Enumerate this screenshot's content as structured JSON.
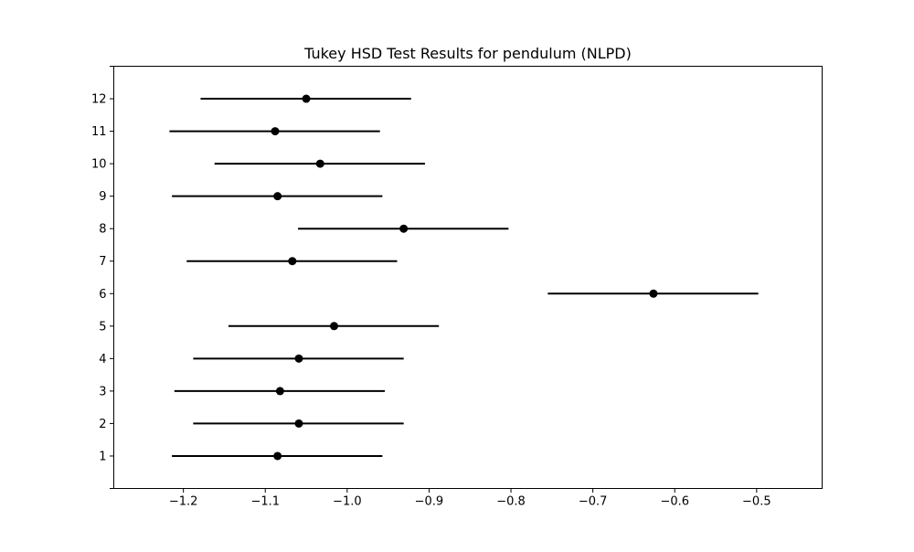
{
  "chart_data": {
    "type": "scatter",
    "subtype": "interval-plot",
    "title": "Tukey HSD Test Results for pendulum (NLPD)",
    "xlabel": "",
    "ylabel": "",
    "xlim": [
      -1.285,
      -0.42
    ],
    "ylim": [
      0,
      13
    ],
    "x_ticks": [
      -1.2,
      -1.1,
      -1.0,
      -0.9,
      -0.8,
      -0.7,
      -0.6,
      -0.5
    ],
    "x_tick_labels": [
      "−1.2",
      "−1.1",
      "−1.0",
      "−0.9",
      "−0.8",
      "−0.7",
      "−0.6",
      "−0.5"
    ],
    "categories": [
      "1",
      "2",
      "3",
      "4",
      "5",
      "6",
      "7",
      "8",
      "9",
      "10",
      "11",
      "12"
    ],
    "points": [
      {
        "group": "1",
        "mean": -1.085,
        "lower": -1.214,
        "upper": -0.957
      },
      {
        "group": "2",
        "mean": -1.059,
        "lower": -1.188,
        "upper": -0.931
      },
      {
        "group": "3",
        "mean": -1.082,
        "lower": -1.211,
        "upper": -0.954
      },
      {
        "group": "4",
        "mean": -1.059,
        "lower": -1.188,
        "upper": -0.931
      },
      {
        "group": "5",
        "mean": -1.016,
        "lower": -1.145,
        "upper": -0.888
      },
      {
        "group": "6",
        "mean": -0.626,
        "lower": -0.755,
        "upper": -0.498
      },
      {
        "group": "7",
        "mean": -1.067,
        "lower": -1.196,
        "upper": -0.939
      },
      {
        "group": "8",
        "mean": -0.931,
        "lower": -1.06,
        "upper": -0.803
      },
      {
        "group": "9",
        "mean": -1.085,
        "lower": -1.214,
        "upper": -0.957
      },
      {
        "group": "10",
        "mean": -1.033,
        "lower": -1.162,
        "upper": -0.905
      },
      {
        "group": "11",
        "mean": -1.088,
        "lower": -1.217,
        "upper": -0.96
      },
      {
        "group": "12",
        "mean": -1.05,
        "lower": -1.179,
        "upper": -0.922
      }
    ],
    "grid": false,
    "legend": "none",
    "colors": {
      "marker": "#000000",
      "interval": "#000000",
      "axes": "#000000"
    }
  }
}
